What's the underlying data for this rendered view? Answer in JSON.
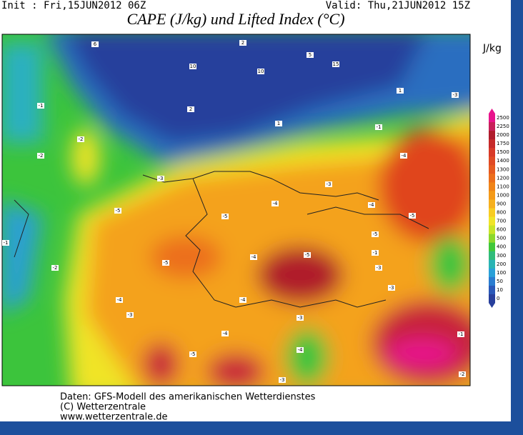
{
  "header": {
    "init": "Init : Fri,15JUN2012 06Z",
    "valid": "Valid: Thu,21JUN2012 15Z",
    "title": "CAPE (J/kg) und Lifted Index (°C)"
  },
  "colorbar": {
    "unit": "J/kg",
    "labels": [
      2500,
      2250,
      2000,
      1750,
      1500,
      1400,
      1300,
      1200,
      1100,
      1000,
      900,
      800,
      700,
      600,
      500,
      400,
      300,
      200,
      100,
      50,
      10,
      0
    ],
    "colors": [
      "#e8148c",
      "#c8205a",
      "#b01c2c",
      "#c62a2a",
      "#d83a28",
      "#e04a24",
      "#e65a20",
      "#ec6e1c",
      "#f08418",
      "#f49a18",
      "#f6b01e",
      "#f8cc22",
      "#f0e428",
      "#c8e428",
      "#8cd82c",
      "#40c83a",
      "#30bc7a",
      "#2ab4b4",
      "#2aa0d8",
      "#2a7cd0",
      "#2a58b8",
      "#28409c"
    ]
  },
  "map_labels": [
    "-5",
    "-4",
    "-3",
    "-3",
    "-2",
    "-1",
    "-2",
    "-4",
    "-5",
    "-5",
    "-4",
    "-3",
    "-5",
    "-4",
    "-3",
    "-4",
    "-5",
    "-4",
    "-3",
    "-2",
    "-1",
    "-1",
    "6",
    "10",
    "10",
    "5",
    "15",
    "2",
    "1",
    "-1",
    "-3",
    "-4",
    "-5",
    "-5",
    "-4",
    "-3",
    "-1",
    "-3",
    "-2",
    "2",
    "1"
  ],
  "footer": [
    "Daten: GFS-Modell des amerikanischen Wetterdienstes",
    "(C) Wetterzentrale",
    "www.wetterzentrale.de"
  ]
}
